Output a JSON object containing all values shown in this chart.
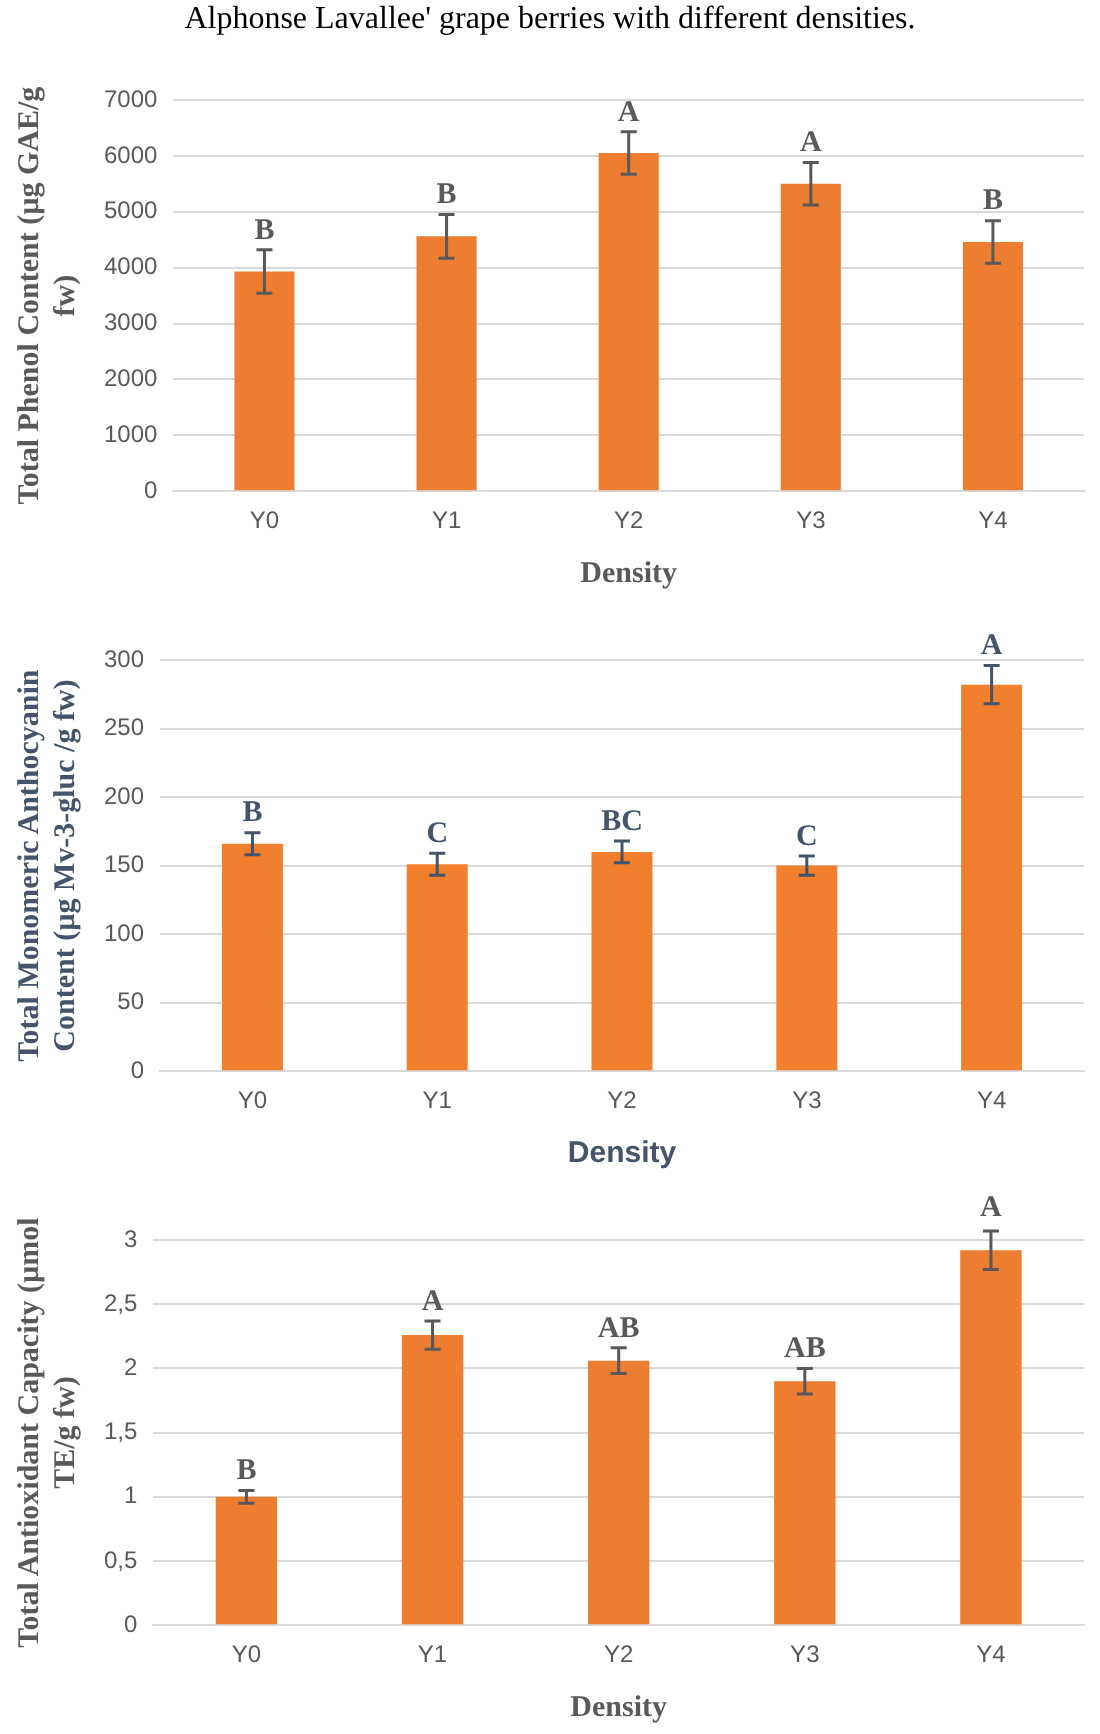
{
  "chart_data": [
    {
      "type": "bar",
      "title": "Alphonse Lavallee' grape berries with different densities.",
      "xlabel": "Density",
      "ylabel": "Total Phenol Content (µg GAE/g fw)",
      "categories": [
        "Y0",
        "Y1",
        "Y2",
        "Y3",
        "Y4"
      ],
      "values": [
        3930,
        4560,
        6050,
        5500,
        4460
      ],
      "errors": [
        390,
        390,
        380,
        380,
        380
      ],
      "color": "#ed7d31",
      "ylim": [
        0,
        7000
      ],
      "yticks": [
        0,
        1000,
        2000,
        3000,
        4000,
        5000,
        6000,
        7000
      ],
      "grid": "y",
      "legend": false,
      "annotations": [
        {
          "text": "B",
          "x": "Y0",
          "y": 4320
        },
        {
          "text": "B",
          "x": "Y1",
          "y": 4950
        },
        {
          "text": "A",
          "x": "Y2",
          "y": 6430
        },
        {
          "text": "A",
          "x": "Y3",
          "y": 5880
        },
        {
          "text": "B",
          "x": "Y4",
          "y": 4840
        }
      ]
    },
    {
      "type": "bar",
      "xlabel": "Density",
      "ylabel": "Total Monomeric Anthocyanin Content (µg Mv-3-gluc /g fw)",
      "categories": [
        "Y0",
        "Y1",
        "Y2",
        "Y3",
        "Y4"
      ],
      "values": [
        166,
        151,
        160,
        150,
        282
      ],
      "errors": [
        8,
        8,
        8,
        7,
        14
      ],
      "color": "#f07f2e",
      "ylim": [
        0,
        300
      ],
      "yticks": [
        0,
        50,
        100,
        150,
        200,
        250,
        300
      ],
      "grid": "y",
      "legend": false,
      "annotations": [
        {
          "text": "B",
          "x": "Y0",
          "y": 174
        },
        {
          "text": "C",
          "x": "Y1",
          "y": 159
        },
        {
          "text": "BC",
          "x": "Y2",
          "y": 168
        },
        {
          "text": "C",
          "x": "Y3",
          "y": 157
        },
        {
          "text": "A",
          "x": "Y4",
          "y": 296
        }
      ]
    },
    {
      "type": "bar",
      "xlabel": "Density",
      "ylabel": "Total Antioxidant Capacity (µmol TE/g fw)",
      "categories": [
        "Y0",
        "Y1",
        "Y2",
        "Y3",
        "Y4"
      ],
      "values": [
        1.0,
        2.26,
        2.06,
        1.9,
        2.92
      ],
      "errors": [
        0.05,
        0.11,
        0.1,
        0.1,
        0.15
      ],
      "color": "#ed7d31",
      "ylim": [
        0,
        3
      ],
      "yticks": [
        0,
        {
          "value": 0.5,
          "label": "0,5"
        },
        1,
        {
          "value": 1.5,
          "label": "1,5"
        },
        2,
        {
          "value": 2.5,
          "label": "2,5"
        },
        3
      ],
      "grid": "y",
      "legend": false,
      "annotations": [
        {
          "text": "B",
          "x": "Y0",
          "y": 1.05
        },
        {
          "text": "A",
          "x": "Y1",
          "y": 2.37
        },
        {
          "text": "AB",
          "x": "Y2",
          "y": 2.16
        },
        {
          "text": "AB",
          "x": "Y3",
          "y": 2.0
        },
        {
          "text": "A",
          "x": "Y4",
          "y": 3.1
        }
      ]
    }
  ]
}
